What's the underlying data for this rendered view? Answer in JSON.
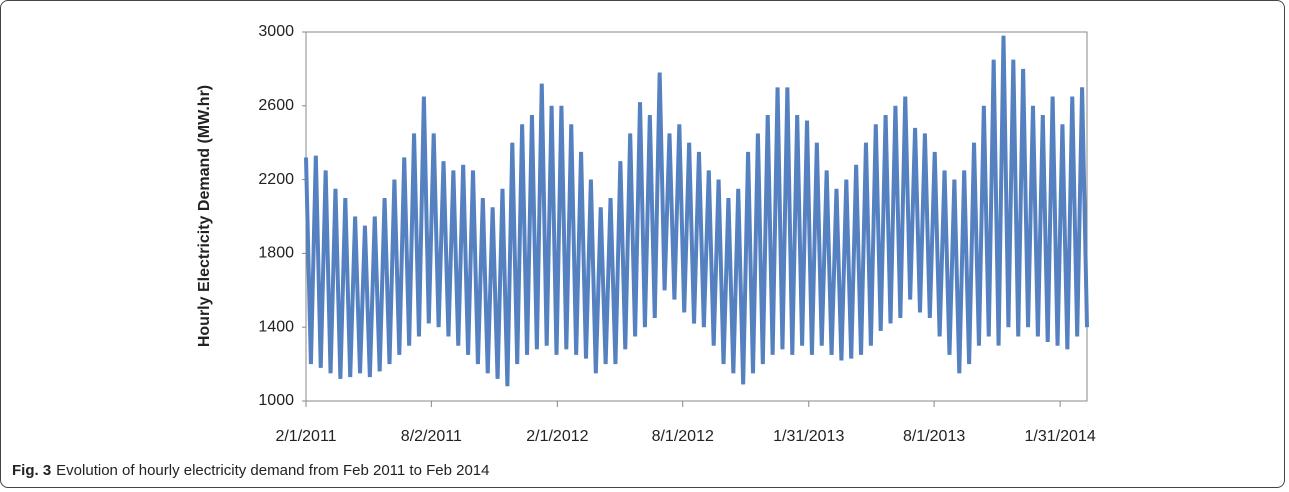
{
  "chart_data": {
    "type": "line",
    "y_label": "Hourly Electricity Demand (MW.hr)",
    "color": "#5581c0",
    "xlim": [
      0,
      1134
    ],
    "xticks": [
      {
        "value": 0,
        "label": "2/1/2011"
      },
      {
        "value": 182,
        "label": "8/2/2011"
      },
      {
        "value": 365,
        "label": "2/1/2012"
      },
      {
        "value": 547,
        "label": "8/1/2012"
      },
      {
        "value": 730,
        "label": "1/31/2013"
      },
      {
        "value": 912,
        "label": "8/1/2013"
      },
      {
        "value": 1095,
        "label": "1/31/2014"
      }
    ],
    "ylim": [
      1000,
      3000
    ],
    "yticks": [
      1000,
      1400,
      1800,
      2200,
      2600,
      3000
    ],
    "values": [
      2320,
      1200,
      2330,
      1180,
      2250,
      1150,
      2150,
      1120,
      2100,
      1130,
      2000,
      1150,
      1950,
      1130,
      2000,
      1160,
      2100,
      1200,
      2200,
      1250,
      2320,
      1300,
      2450,
      1350,
      2650,
      1420,
      2450,
      1400,
      2300,
      1350,
      2250,
      1300,
      2280,
      1250,
      2250,
      1200,
      2100,
      1150,
      2050,
      1120,
      2150,
      1080,
      2400,
      1200,
      2500,
      1250,
      2550,
      1280,
      2720,
      1300,
      2600,
      1250,
      2600,
      1280,
      2500,
      1250,
      2350,
      1230,
      2200,
      1150,
      2050,
      1200,
      2100,
      1200,
      2300,
      1280,
      2450,
      1350,
      2620,
      1400,
      2550,
      1450,
      2780,
      1600,
      2450,
      1550,
      2500,
      1480,
      2400,
      1420,
      2350,
      1400,
      2250,
      1300,
      2200,
      1200,
      2100,
      1150,
      2150,
      1090,
      2350,
      1150,
      2450,
      1200,
      2550,
      1250,
      2700,
      1280,
      2700,
      1250,
      2550,
      1300,
      2520,
      1250,
      2400,
      1300,
      2250,
      1250,
      2150,
      1220,
      2200,
      1230,
      2280,
      1250,
      2400,
      1300,
      2500,
      1380,
      2550,
      1420,
      2600,
      1450,
      2650,
      1550,
      2480,
      1480,
      2450,
      1450,
      2350,
      1350,
      2250,
      1250,
      2200,
      1150,
      2250,
      1200,
      2400,
      1300,
      2600,
      1350,
      2850,
      1300,
      2980,
      1400,
      2850,
      1350,
      2800,
      1400,
      2600,
      1350,
      2550,
      1320,
      2650,
      1300,
      2500,
      1280,
      2650,
      1350,
      2700,
      1400
    ]
  },
  "caption": {
    "label": "Fig. 3",
    "text": "Evolution of hourly electricity demand from Feb 2011 to Feb 2014"
  }
}
